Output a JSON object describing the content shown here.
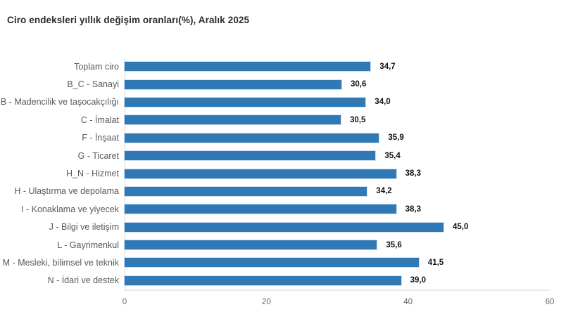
{
  "title": "Ciro endeksleri yıllık değişim oranları(%), Aralık 2025",
  "chart_data": {
    "type": "bar",
    "orientation": "horizontal",
    "title": "Ciro endeksleri yıllık değişim oranları(%), Aralık 2025",
    "categories": [
      "Toplam ciro",
      "B_C - Sanayi",
      "B - Madencilik ve taşocakçılığı",
      "C - İmalat",
      "F - İnşaat",
      "G - Ticaret",
      "H_N - Hizmet",
      "H - Ulaştırma ve depolama",
      "I - Konaklama ve yiyecek",
      "J - Bilgi ve iletişim",
      "L - Gayrimenkul",
      "M - Mesleki, bilimsel ve teknik",
      "N - İdari ve destek"
    ],
    "values": [
      34.7,
      30.6,
      34.0,
      30.5,
      35.9,
      35.4,
      38.3,
      34.2,
      38.3,
      45.0,
      35.6,
      41.5,
      39.0
    ],
    "value_labels": [
      "34,7",
      "30,6",
      "34,0",
      "30,5",
      "35,9",
      "35,4",
      "38,3",
      "34,2",
      "38,3",
      "45,0",
      "35,6",
      "41,5",
      "39,0"
    ],
    "xlabel": "",
    "ylabel": "",
    "xlim": [
      0,
      60
    ],
    "x_ticks": [
      "0",
      "20",
      "40",
      "60"
    ],
    "grid": false,
    "legend": "none",
    "bar_color": "#3179b5",
    "bar_edge_color": "#cfe0f0",
    "axis_color": "#d6d6d6",
    "category_label_color": "#595959",
    "value_label_color": "#111111",
    "tick_label_color": "#666666"
  }
}
